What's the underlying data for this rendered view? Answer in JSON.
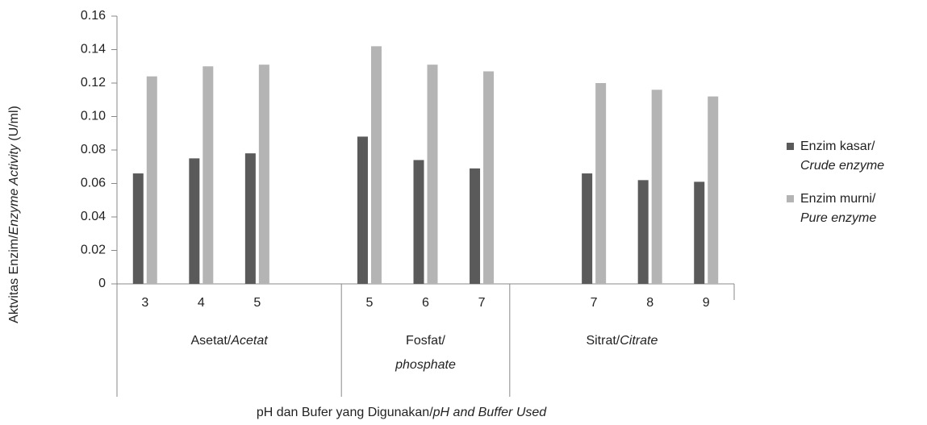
{
  "chart_data": {
    "type": "bar",
    "ylabel": [
      "Aktvitas Enzim/",
      "Enzyme Activity",
      " (U/ml)"
    ],
    "xlabel": [
      "pH dan Bufer yang Digunakan/",
      "pH and Buffer Used"
    ],
    "categories": [
      "3",
      "4",
      "5",
      null,
      "5",
      "6",
      "7",
      null,
      "7",
      "8",
      "9"
    ],
    "groups": [
      {
        "label": [
          "Asetat/",
          "Acetat"
        ],
        "size": 4
      },
      {
        "label": [
          "Fosfat/",
          "phosphate"
        ],
        "size": 3
      },
      {
        "label": [
          "Sitrat/",
          "Citrate"
        ],
        "size": 4
      }
    ],
    "series": [
      {
        "name": [
          "Enzim kasar/",
          "Crude enzyme"
        ],
        "color": "#5a5a5a",
        "values": [
          0.066,
          0.075,
          0.078,
          null,
          0.088,
          0.074,
          0.069,
          null,
          0.066,
          0.062,
          0.061
        ]
      },
      {
        "name": [
          "Enzim murni/",
          "Pure enzyme"
        ],
        "color": "#b4b4b4",
        "values": [
          0.124,
          0.13,
          0.131,
          null,
          0.142,
          0.131,
          0.127,
          null,
          0.12,
          0.116,
          0.112
        ]
      }
    ],
    "ylim": [
      0,
      0.16
    ],
    "yticks": [
      0,
      0.02,
      0.04,
      0.06,
      0.08,
      {
        "value": 0.1,
        "label": "0.10"
      },
      0.12,
      0.14,
      0.16
    ],
    "legend": "right"
  }
}
